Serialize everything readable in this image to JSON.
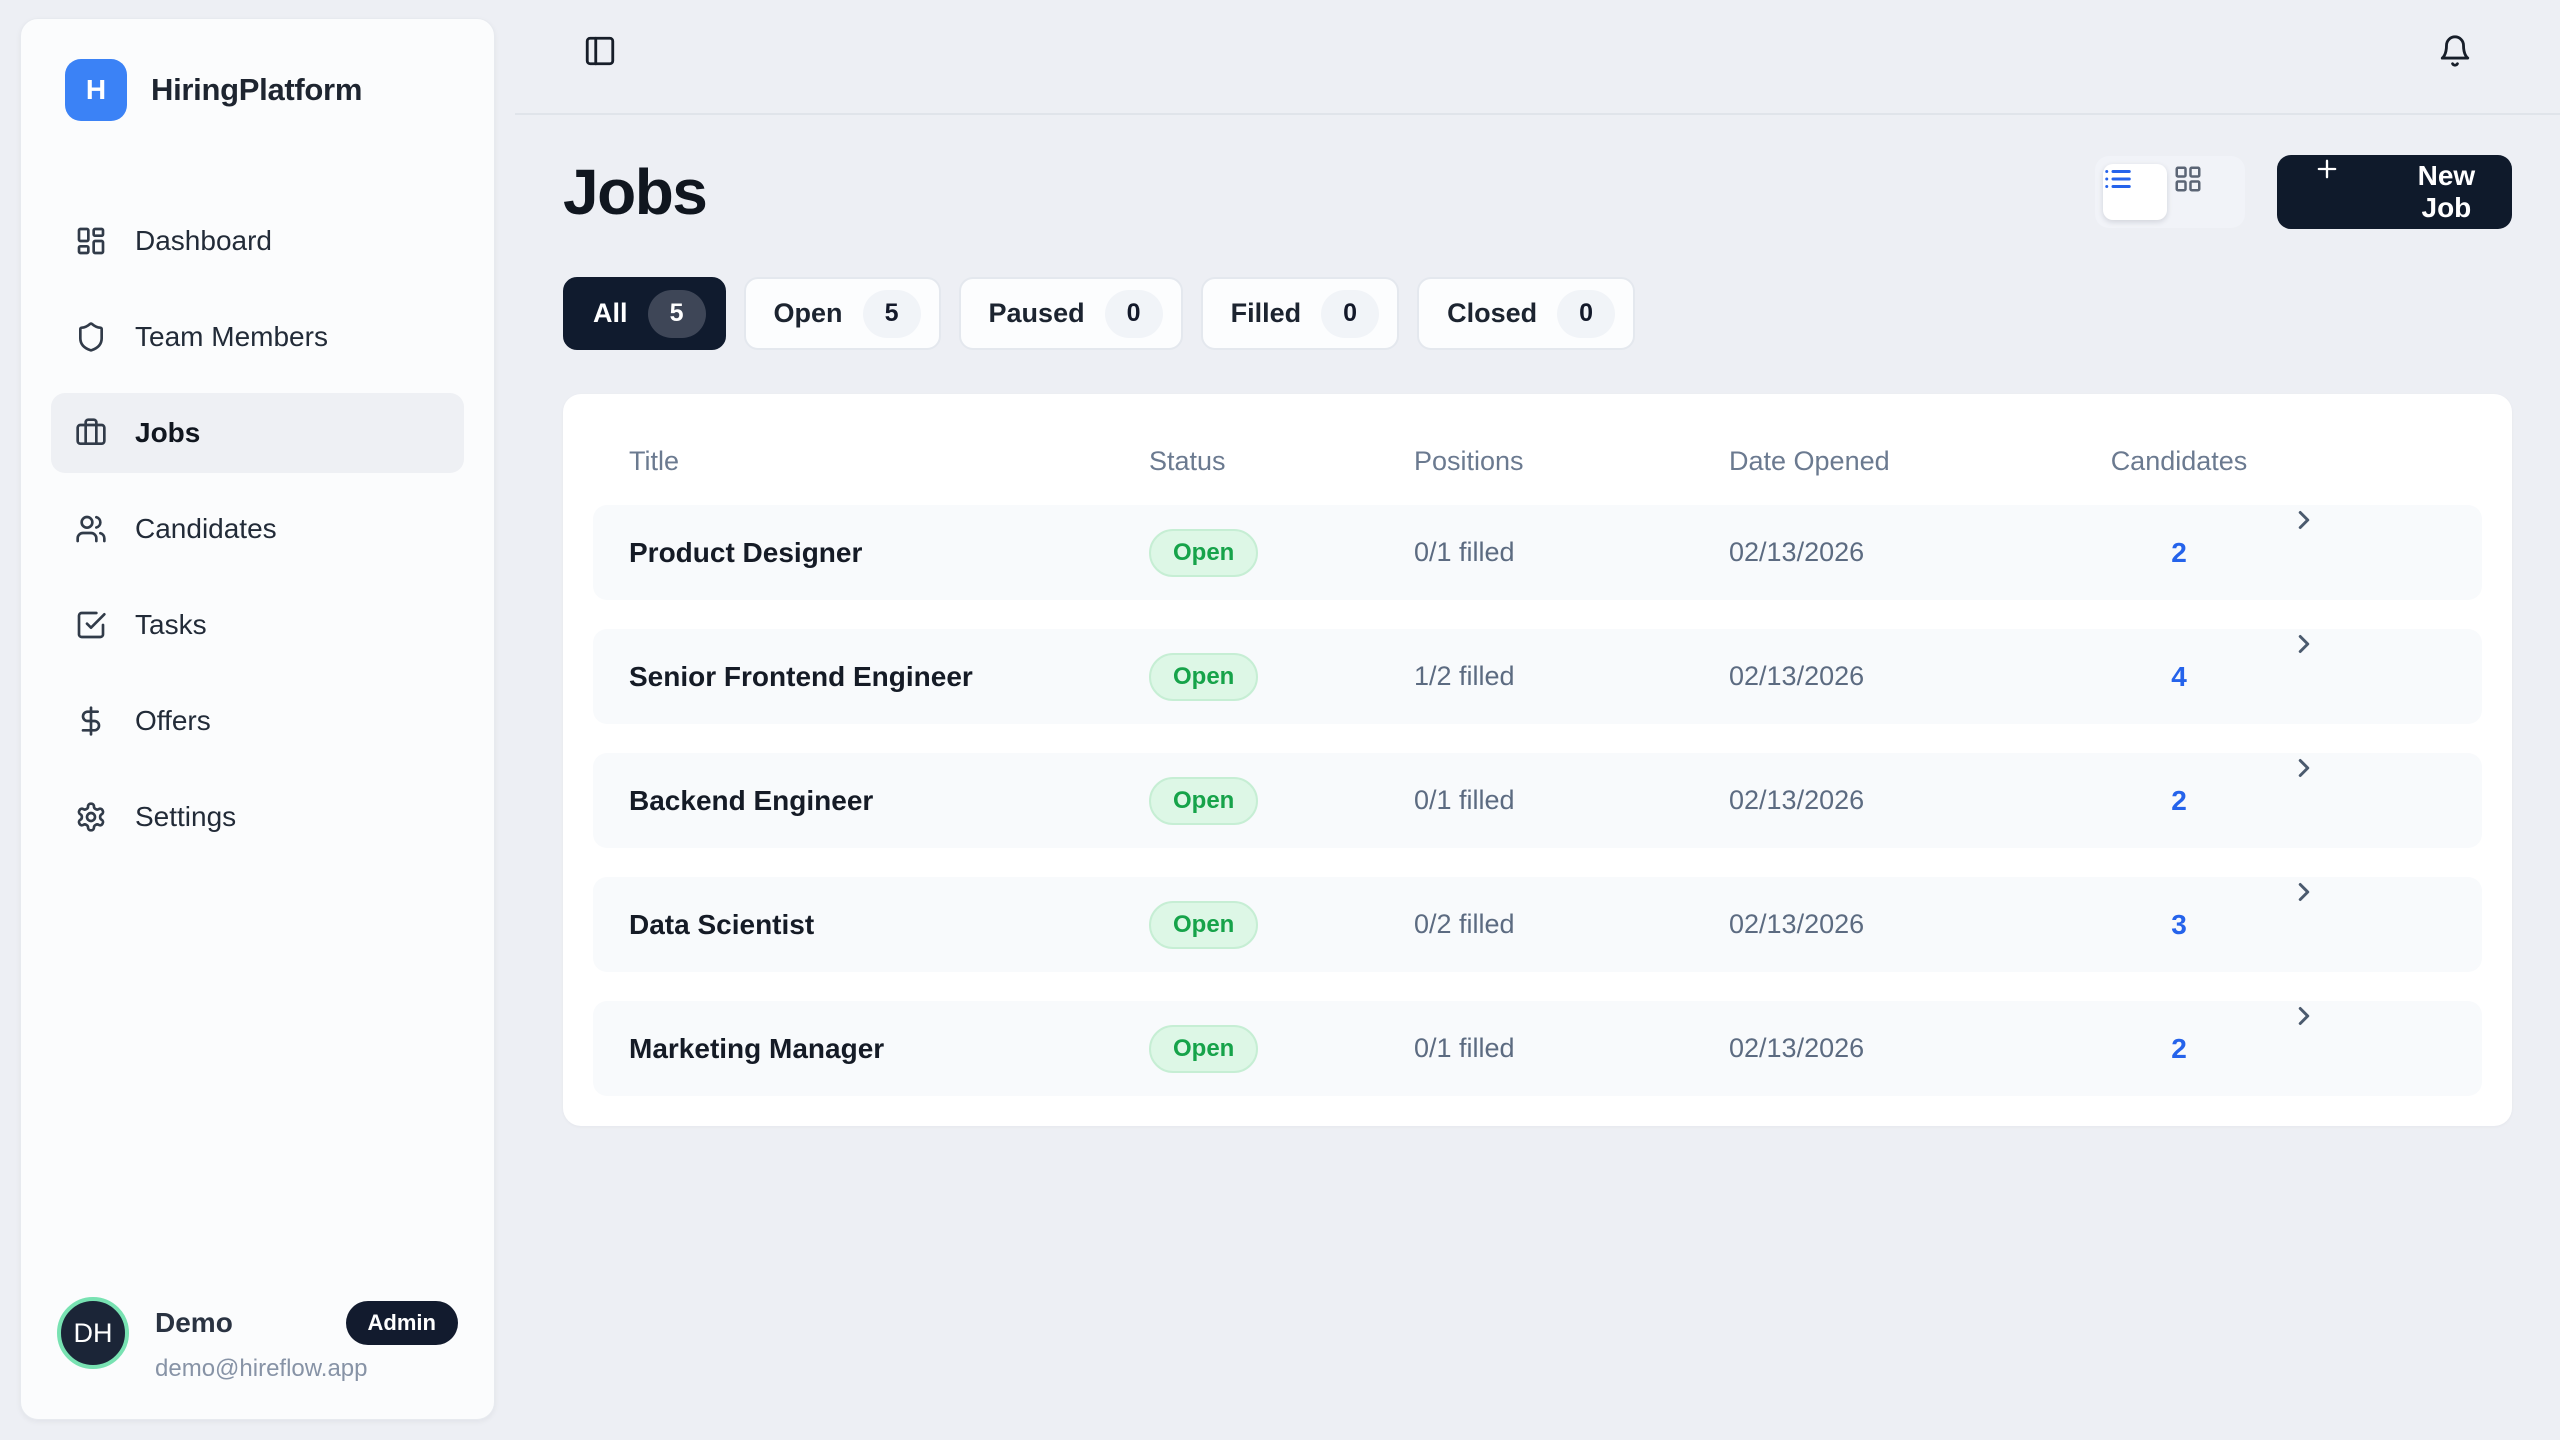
{
  "app": {
    "name": "HiringPlatform",
    "logo_letter": "H"
  },
  "sidebar": {
    "items": [
      {
        "label": "Dashboard",
        "icon": "dashboard-icon",
        "active": false
      },
      {
        "label": "Team Members",
        "icon": "shield-icon",
        "active": false
      },
      {
        "label": "Jobs",
        "icon": "briefcase-icon",
        "active": true
      },
      {
        "label": "Candidates",
        "icon": "users-icon",
        "active": false
      },
      {
        "label": "Tasks",
        "icon": "tasks-icon",
        "active": false
      },
      {
        "label": "Offers",
        "icon": "dollar-icon",
        "active": false
      },
      {
        "label": "Settings",
        "icon": "gear-icon",
        "active": false
      }
    ],
    "user": {
      "initials": "DH",
      "name": "Demo",
      "role_badge": "Admin",
      "email": "demo@hireflow.app"
    }
  },
  "topbar": {
    "sidebar_toggle_icon": "panel-left-icon",
    "notifications_icon": "bell-icon"
  },
  "page": {
    "title": "Jobs"
  },
  "toolbar": {
    "view_list_icon": "list-icon",
    "view_grid_icon": "grid-icon",
    "new_job_label": "New Job"
  },
  "filters": [
    {
      "label": "All",
      "count": "5",
      "active": true
    },
    {
      "label": "Open",
      "count": "5",
      "active": false
    },
    {
      "label": "Paused",
      "count": "0",
      "active": false
    },
    {
      "label": "Filled",
      "count": "0",
      "active": false
    },
    {
      "label": "Closed",
      "count": "0",
      "active": false
    }
  ],
  "table": {
    "columns": [
      "Title",
      "Status",
      "Positions",
      "Date Opened",
      "Candidates"
    ],
    "rows": [
      {
        "title": "Product Designer",
        "status": "Open",
        "positions": "0/1 filled",
        "date_opened": "02/13/2026",
        "candidates": "2"
      },
      {
        "title": "Senior Frontend Engineer",
        "status": "Open",
        "positions": "1/2 filled",
        "date_opened": "02/13/2026",
        "candidates": "4"
      },
      {
        "title": "Backend Engineer",
        "status": "Open",
        "positions": "0/1 filled",
        "date_opened": "02/13/2026",
        "candidates": "2"
      },
      {
        "title": "Data Scientist",
        "status": "Open",
        "positions": "0/2 filled",
        "date_opened": "02/13/2026",
        "candidates": "3"
      },
      {
        "title": "Marketing Manager",
        "status": "Open",
        "positions": "0/1 filled",
        "date_opened": "02/13/2026",
        "candidates": "2"
      }
    ]
  },
  "colors": {
    "page_background": "#edeff4",
    "brand_blue": "#3b82f6",
    "accent_blue": "#2563eb",
    "dark_navy": "#101b2e",
    "status_open_bg": "#ddf7e6",
    "status_open_text": "#16a34a",
    "avatar_ring": "#78e2b2"
  }
}
